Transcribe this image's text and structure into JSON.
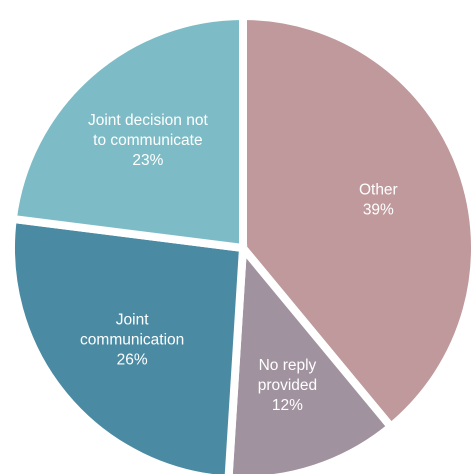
{
  "chart_data": {
    "type": "pie",
    "title": "",
    "slices": [
      {
        "label_lines": [
          "Other",
          "39%"
        ],
        "value": 39,
        "color": "#bf999b"
      },
      {
        "label_lines": [
          "No reply",
          "provided",
          "12%"
        ],
        "value": 12,
        "color": "#a0929e"
      },
      {
        "label_lines": [
          "Joint",
          "communication",
          "26%"
        ],
        "value": 26,
        "color": "#4a8aa3"
      },
      {
        "label_lines": [
          "Joint decision not",
          "to communicate",
          "23%"
        ],
        "value": 23,
        "color": "#7dbcc6"
      }
    ],
    "start_angle_deg": 0,
    "direction": "clockwise",
    "exploded": true,
    "legend": "none"
  }
}
